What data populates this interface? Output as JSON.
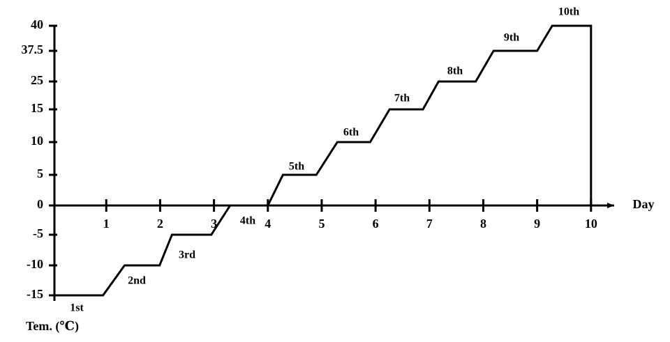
{
  "chart_data": {
    "type": "line",
    "x_label": "Day",
    "y_label": "Tem. (℃)",
    "x": [
      0,
      0.94,
      1.34,
      1.99,
      2.22,
      2.95,
      3.3,
      4.0,
      4.28,
      4.9,
      5.29,
      5.9,
      6.26,
      6.88,
      7.17,
      7.86,
      8.19,
      9.0,
      9.28,
      10,
      10
    ],
    "series": [
      {
        "color": "#000000",
        "values": [
          -15,
          -15,
          -10,
          -10,
          -5,
          -5,
          0,
          0,
          5,
          5,
          10,
          10,
          15,
          15,
          25,
          25,
          37.5,
          37.5,
          40,
          40,
          0
        ]
      }
    ],
    "annotations": [
      "1st",
      "2nd",
      "3rd",
      "4th",
      "5th",
      "6th",
      "7th",
      "8th",
      "9th",
      "10th"
    ],
    "xlim": [
      -0.04,
      10.43
    ],
    "xticks": [
      1,
      2,
      3,
      4,
      5,
      6,
      7,
      8,
      9,
      10
    ],
    "ylim": [
      -15,
      40
    ],
    "yticks": [
      -15,
      -10,
      -5,
      0,
      5,
      10,
      15,
      25,
      37.5,
      40
    ]
  }
}
